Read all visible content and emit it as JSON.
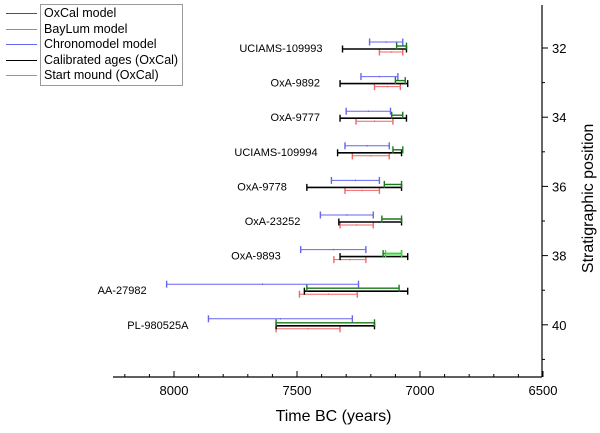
{
  "chart_data": {
    "type": "range-bar",
    "title": "",
    "xlabel": "Time BC (years)",
    "ylabel": "Stratigraphic position",
    "x_reversed": true,
    "xlim": [
      8250,
      6500
    ],
    "ylim": [
      31,
      41.5
    ],
    "x_major_ticks": [
      8000,
      7500,
      7000,
      6500
    ],
    "x_tick_labels": [
      "8000",
      "7500",
      "7000",
      "6500"
    ],
    "x_minor_step": 100,
    "y_major_ticks": [
      32,
      34,
      36,
      38,
      40
    ],
    "y_tick_labels": [
      "32",
      "34",
      "36",
      "38",
      "40"
    ],
    "y_minor_ticks": [
      33,
      35,
      37,
      39,
      41
    ],
    "grid": false,
    "legend_position": "top-left",
    "legend": [
      {
        "key": "oxcal",
        "label": "OxCal model",
        "color": "#1a7a1a"
      },
      {
        "key": "baylum",
        "label": "BayLum model",
        "color": "#f06666"
      },
      {
        "key": "chrono",
        "label": "Chronomodel model",
        "color": "#6666ee"
      },
      {
        "key": "calib",
        "label": "Calibrated ages (OxCal)",
        "color": "#000000"
      },
      {
        "key": "start",
        "label": "Start mound (OxCal)",
        "color": "#33dd33"
      }
    ],
    "samples": [
      {
        "label": "UCIAMS-109993",
        "position": 32,
        "chrono": [
          7205,
          7070
        ],
        "oxcal": [
          7095,
          7055
        ],
        "calib": [
          7315,
          7055
        ],
        "baylum": [
          7165,
          7070
        ]
      },
      {
        "label": "OxA-9892",
        "position": 33,
        "chrono": [
          7240,
          7090
        ],
        "oxcal": [
          7100,
          7060
        ],
        "calib": [
          7325,
          7050
        ],
        "baylum": [
          7185,
          7080
        ]
      },
      {
        "label": "OxA-9777",
        "position": 34,
        "chrono": [
          7300,
          7120
        ],
        "oxcal": [
          7115,
          7070
        ],
        "calib": [
          7325,
          7055
        ],
        "baylum": [
          7260,
          7110
        ]
      },
      {
        "label": "UCIAMS-109994",
        "position": 35,
        "chrono": [
          7305,
          7125
        ],
        "oxcal": [
          7110,
          7070
        ],
        "calib": [
          7335,
          7075
        ],
        "baylum": [
          7275,
          7125
        ]
      },
      {
        "label": "OxA-9778",
        "position": 36,
        "chrono": [
          7360,
          7165
        ],
        "oxcal": [
          7145,
          7075
        ],
        "calib": [
          7460,
          7075
        ],
        "baylum": [
          7305,
          7165
        ]
      },
      {
        "label": "OxA-23252",
        "position": 37,
        "chrono": [
          7405,
          7190
        ],
        "oxcal": [
          7155,
          7075
        ],
        "calib": [
          7330,
          7075
        ],
        "baylum": [
          7325,
          7190
        ]
      },
      {
        "label": "OxA-9893",
        "position": 38,
        "chrono": [
          7485,
          7220
        ],
        "oxcal": [
          7150,
          7075
        ],
        "start": [
          7140,
          7075
        ],
        "calib": [
          7325,
          7050
        ],
        "baylum": [
          7350,
          7220
        ]
      },
      {
        "label": "AA-27982",
        "position": 39,
        "chrono": [
          8030,
          7250
        ],
        "oxcal": [
          7460,
          7085
        ],
        "calib": [
          7470,
          7050
        ],
        "baylum": [
          7490,
          7255
        ]
      },
      {
        "label": "PL-980525A",
        "position": 40,
        "chrono": [
          7860,
          7275
        ],
        "oxcal": [
          7585,
          7185
        ],
        "calib": [
          7585,
          7185
        ],
        "baylum": [
          7585,
          7325
        ]
      }
    ]
  }
}
